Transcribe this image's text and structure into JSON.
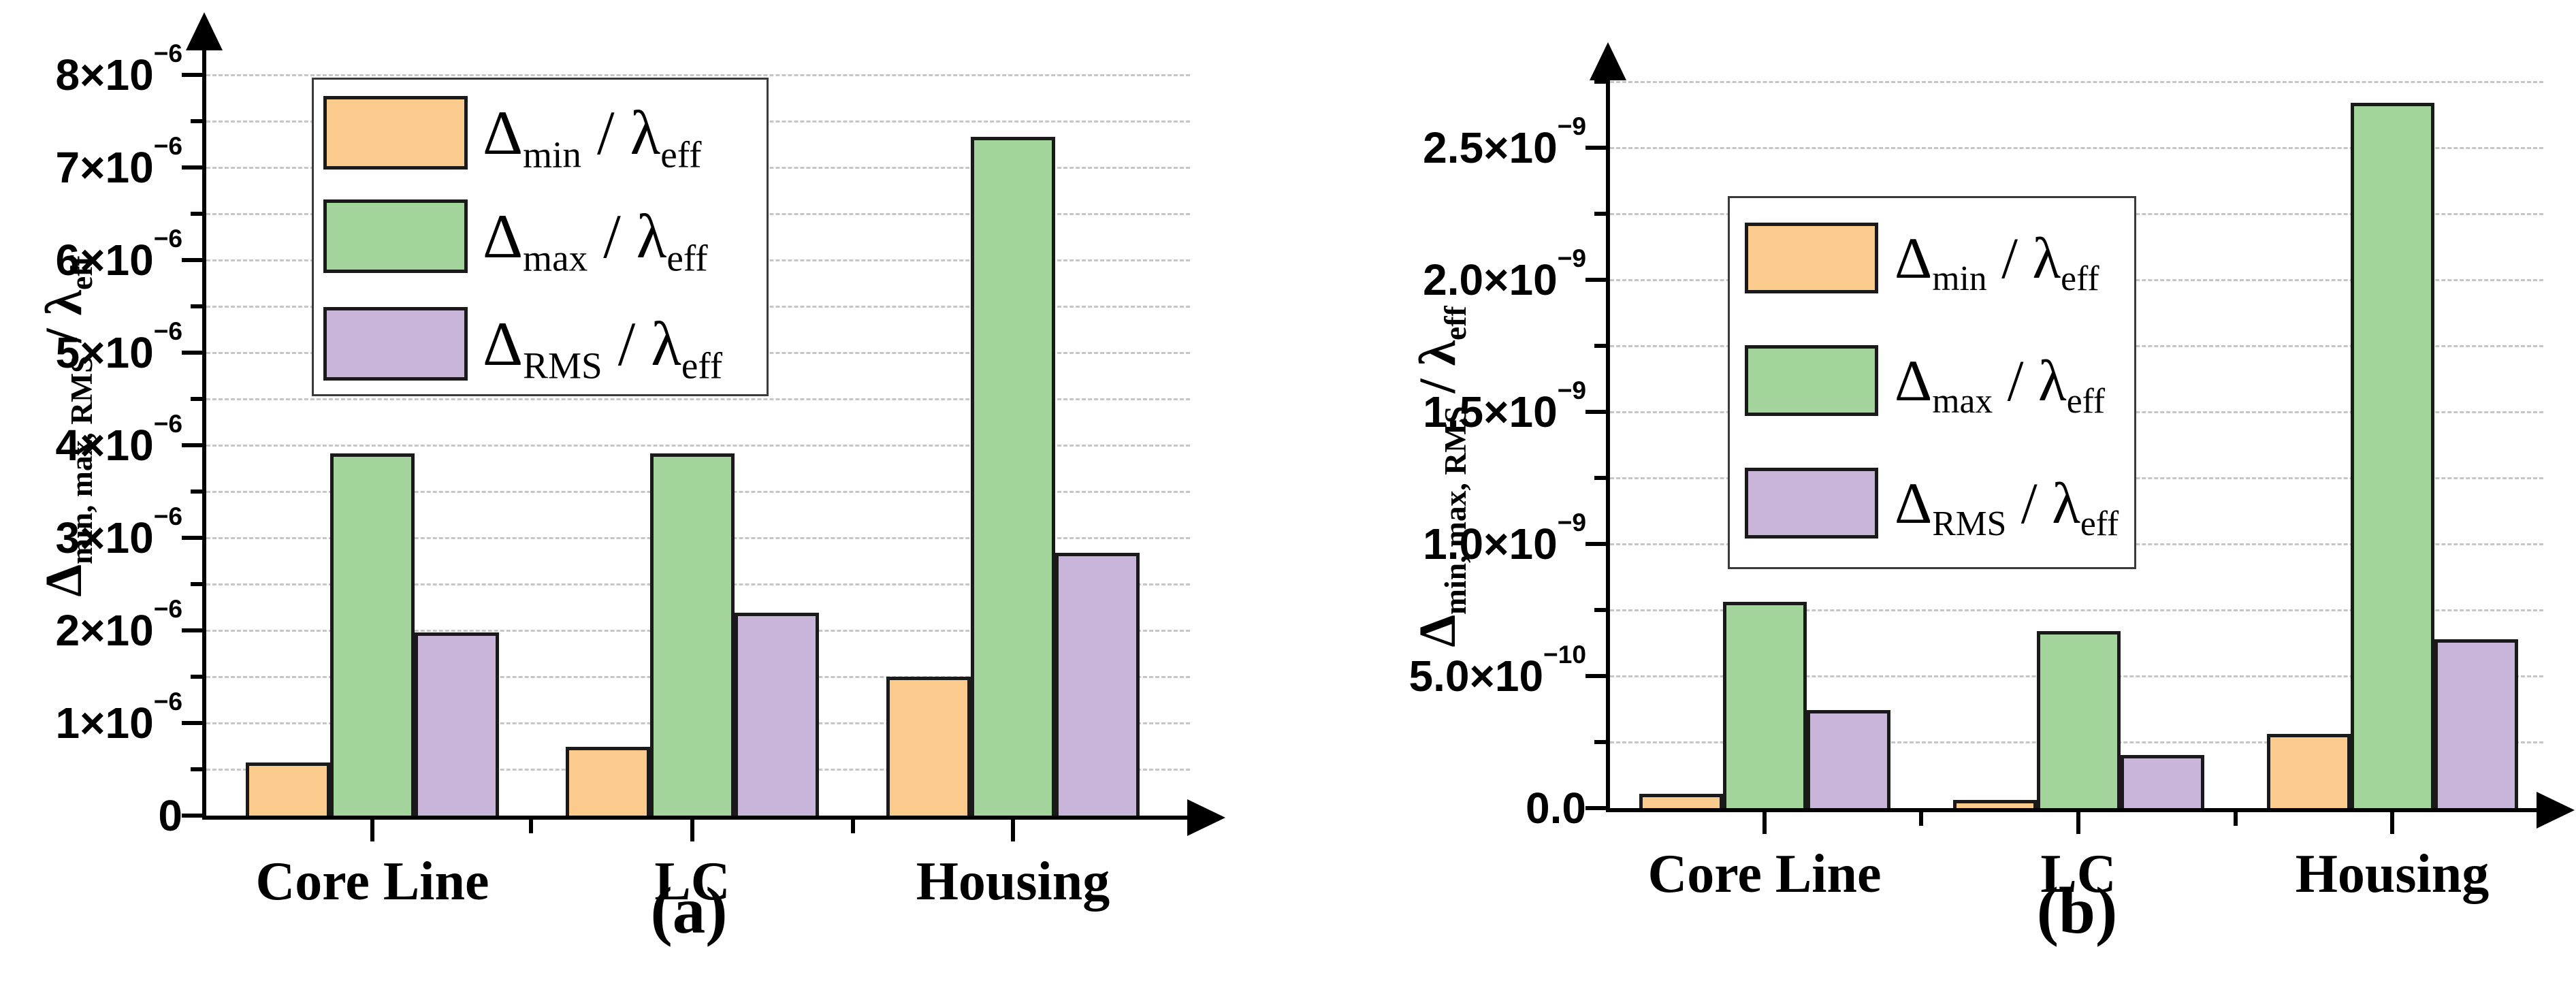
{
  "figure": {
    "captions": {
      "a": "(a)",
      "b": "(b)"
    }
  },
  "colors": {
    "background": "#ffffff",
    "axis": "#000000",
    "gridline": "#c6c6c6",
    "bar_border": "#1a1a1a",
    "legend_border": "#3a3a3a",
    "series_min_orange": "#FBCB8E",
    "series_max_green": "#A2D49C",
    "series_rms_purple": "#C8B5D9"
  },
  "chart_data": [
    {
      "type": "bar",
      "panel": "a",
      "title": "",
      "categories": [
        "Core Line",
        "LC",
        "Housing"
      ],
      "series": [
        {
          "key": "min",
          "name": "Delta_min / lambda_eff",
          "color": "#FBCB8E",
          "label_parts": [
            {
              "t": "Δ"
            },
            {
              "sub": "min"
            },
            {
              "t": " / λ"
            },
            {
              "sub": "eff"
            }
          ],
          "values": [
            5.7e-07,
            7.4e-07,
            1.5e-06
          ]
        },
        {
          "key": "max",
          "name": "Delta_max / lambda_eff",
          "color": "#A2D49C",
          "label_parts": [
            {
              "t": "Δ"
            },
            {
              "sub": "max"
            },
            {
              "t": " / λ"
            },
            {
              "sub": "eff"
            }
          ],
          "values": [
            3.91e-06,
            3.91e-06,
            7.33e-06
          ]
        },
        {
          "key": "rms",
          "name": "Delta_RMS / lambda_eff",
          "color": "#C8B5D9",
          "label_parts": [
            {
              "t": "Δ"
            },
            {
              "sub": "RMS"
            },
            {
              "t": " / λ"
            },
            {
              "sub": "eff"
            }
          ],
          "values": [
            1.98e-06,
            2.19e-06,
            2.84e-06
          ]
        }
      ],
      "xlabel": "",
      "ylabel": "Delta_min, max, RMS / lambda_eff",
      "ylabel_parts": [
        {
          "t": "Δ"
        },
        {
          "sub": "min, max, RMS"
        },
        {
          "t": " / λ"
        },
        {
          "sub": "eff"
        }
      ],
      "ylim": [
        0,
        8.5e-06
      ],
      "grid": {
        "on": true,
        "step": 5e-07,
        "max": 8e-06
      },
      "yticks": {
        "major": [
          {
            "v": 0,
            "base": "0",
            "exp": ""
          },
          {
            "v": 1e-06,
            "base": "1×10",
            "exp": "−6"
          },
          {
            "v": 2e-06,
            "base": "2×10",
            "exp": "−6"
          },
          {
            "v": 3e-06,
            "base": "3×10",
            "exp": "−6"
          },
          {
            "v": 4e-06,
            "base": "4×10",
            "exp": "−6"
          },
          {
            "v": 5e-06,
            "base": "5×10",
            "exp": "−6"
          },
          {
            "v": 6e-06,
            "base": "6×10",
            "exp": "−6"
          },
          {
            "v": 7e-06,
            "base": "7×10",
            "exp": "−6"
          },
          {
            "v": 8e-06,
            "base": "8×10",
            "exp": "−6"
          }
        ],
        "minor_step": 5e-07,
        "minor_max": 7.5e-06
      },
      "legend_position": "top-left"
    },
    {
      "type": "bar",
      "panel": "b",
      "title": "",
      "categories": [
        "Core Line",
        "LC",
        "Housing"
      ],
      "series": [
        {
          "key": "min",
          "name": "Delta_min / lambda_eff",
          "color": "#FBCB8E",
          "label_parts": [
            {
              "t": "Δ"
            },
            {
              "sub": "min"
            },
            {
              "t": " / λ"
            },
            {
              "sub": "eff"
            }
          ],
          "values": [
            5.5e-11,
            3e-11,
            2.8e-10
          ]
        },
        {
          "key": "max",
          "name": "Delta_max / lambda_eff",
          "color": "#A2D49C",
          "label_parts": [
            {
              "t": "Δ"
            },
            {
              "sub": "max"
            },
            {
              "t": " / λ"
            },
            {
              "sub": "eff"
            }
          ],
          "values": [
            7.8e-10,
            6.7e-10,
            2.67e-09
          ]
        },
        {
          "key": "rms",
          "name": "Delta_RMS / lambda_eff",
          "color": "#C8B5D9",
          "label_parts": [
            {
              "t": "Δ"
            },
            {
              "sub": "RMS"
            },
            {
              "t": " / λ"
            },
            {
              "sub": "eff"
            }
          ],
          "values": [
            3.7e-10,
            2e-10,
            6.4e-10
          ]
        }
      ],
      "xlabel": "",
      "ylabel": "Delta_min, max, RMS / lambda_eff",
      "ylabel_parts": [
        {
          "t": "Δ"
        },
        {
          "sub": "min, max, RMS"
        },
        {
          "t": " / λ"
        },
        {
          "sub": "eff"
        }
      ],
      "ylim": [
        0,
        2.8e-09
      ],
      "grid": {
        "on": true,
        "step": 2.5e-10,
        "max": 2.75e-09
      },
      "yticks": {
        "major": [
          {
            "v": 0,
            "base": "0.0",
            "exp": ""
          },
          {
            "v": 5e-10,
            "base": "5.0×10",
            "exp": "−10"
          },
          {
            "v": 1e-09,
            "base": "1.0×10",
            "exp": "−9"
          },
          {
            "v": 1.5e-09,
            "base": "1.5×10",
            "exp": "−9"
          },
          {
            "v": 2e-09,
            "base": "2.0×10",
            "exp": "−9"
          },
          {
            "v": 2.5e-09,
            "base": "2.5×10",
            "exp": "−9"
          }
        ],
        "minor_step": 2.5e-10,
        "minor_max": 2.75e-09
      },
      "legend_position": "top-left"
    }
  ]
}
